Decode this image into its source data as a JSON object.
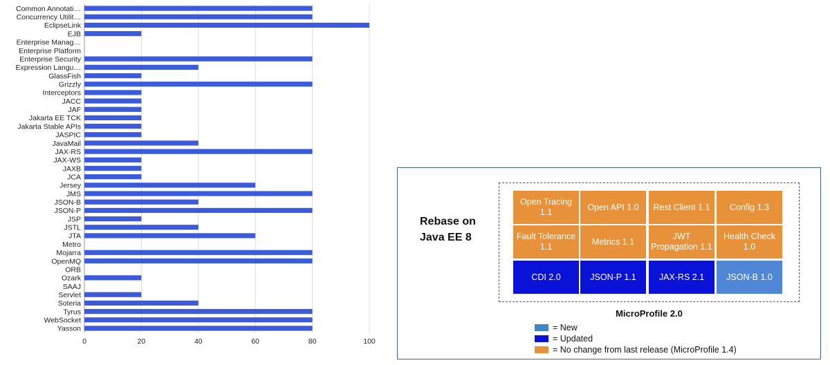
{
  "chart_data": {
    "type": "bar",
    "orientation": "horizontal",
    "categories": [
      "Common Annotati…",
      "Concurrency Utilit…",
      "EclipseLink",
      "EJB",
      "Enterprise Manag…",
      "Enterprise Platform",
      "Enterprise Security",
      "Expression Langu…",
      "GlassFish",
      "Grizzly",
      "Interceptors",
      "JACC",
      "JAF",
      "Jakarta EE TCK",
      "Jakarta Stable APIs",
      "JASPIC",
      "JavaMail",
      "JAX-RS",
      "JAX-WS",
      "JAXB",
      "JCA",
      "Jersey",
      "JMS",
      "JSON-B",
      "JSON-P",
      "JSP",
      "JSTL",
      "JTA",
      "Metro",
      "Mojarra",
      "OpenMQ",
      "ORB",
      "Ozark",
      "SAAJ",
      "Servlet",
      "Soteria",
      "Tyrus",
      "WebSocket",
      "Yasson"
    ],
    "values": [
      80,
      80,
      100,
      20,
      0,
      0,
      80,
      40,
      20,
      80,
      20,
      20,
      20,
      20,
      20,
      20,
      40,
      80,
      20,
      20,
      20,
      60,
      80,
      40,
      80,
      20,
      40,
      60,
      0,
      80,
      80,
      0,
      20,
      0,
      20,
      40,
      80,
      80,
      80
    ],
    "xlim": [
      0,
      100
    ],
    "xticks": [
      0,
      20,
      40,
      60,
      80,
      100
    ],
    "bar_color": "#3b5bdb",
    "grid": "vertical"
  },
  "panel": {
    "rebase_line1": "Rebase on",
    "rebase_line2": "Java EE 8",
    "title": "MicroProfile 2.0",
    "rows": [
      [
        {
          "label": "Open Tracing 1.1",
          "status": "nochange"
        },
        {
          "label": "Open API 1.0",
          "status": "nochange"
        },
        {
          "label": "Rest Client 1.1",
          "status": "nochange"
        },
        {
          "label": "Config 1.3",
          "status": "nochange"
        }
      ],
      [
        {
          "label": "Fault Tolerance 1.1",
          "status": "nochange"
        },
        {
          "label": "Metrics 1.1",
          "status": "nochange"
        },
        {
          "label": "JWT Propagation 1.1",
          "status": "nochange"
        },
        {
          "label": "Health Check 1.0",
          "status": "nochange"
        }
      ],
      [
        {
          "label": "CDI 2.0",
          "status": "updated"
        },
        {
          "label": "JSON-P 1.1",
          "status": "updated"
        },
        {
          "label": "JAX-RS 2.1",
          "status": "updated"
        },
        {
          "label": "JSON-B 1.0",
          "status": "new"
        }
      ]
    ],
    "legend": [
      {
        "label": "= New",
        "color": "#3f86c4"
      },
      {
        "label": "= Updated",
        "color": "#0a12d8"
      },
      {
        "label": "= No change from last release (MicroProfile 1.4)",
        "color": "#e8913b"
      }
    ]
  }
}
